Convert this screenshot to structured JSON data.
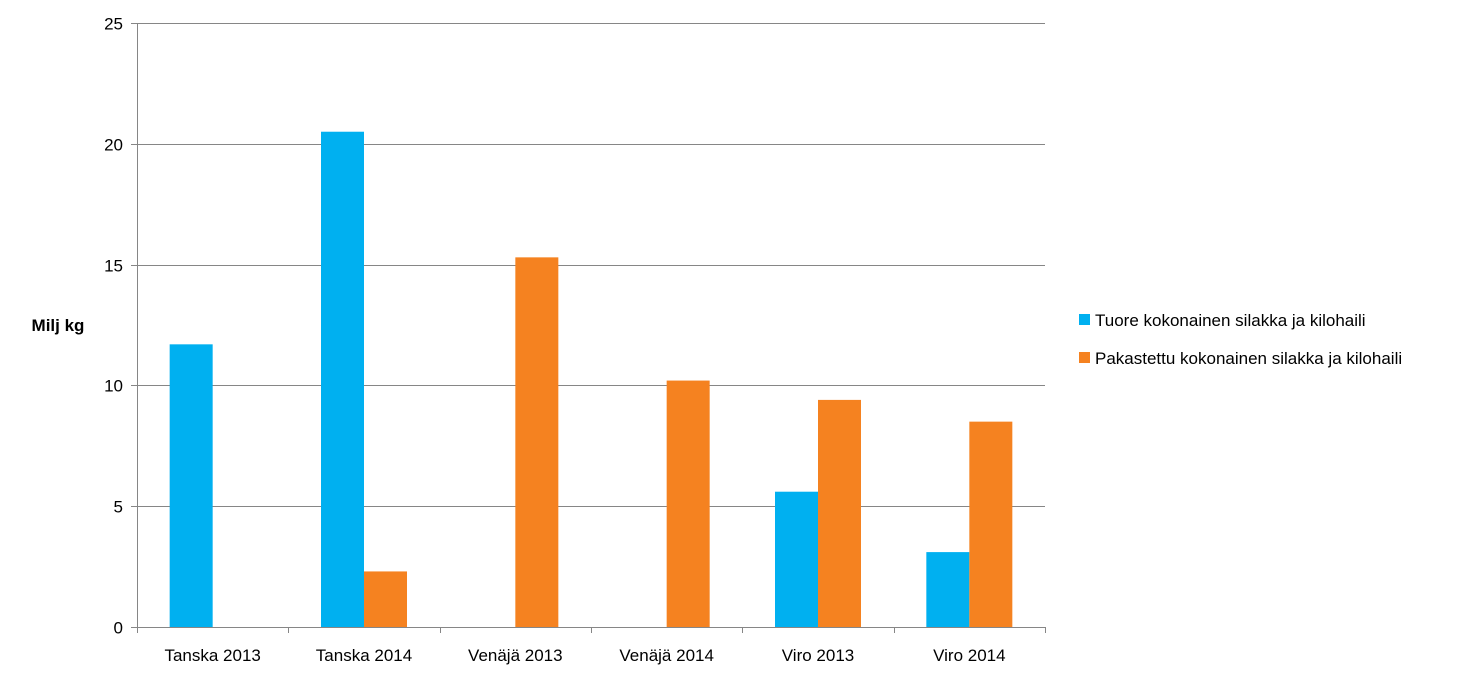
{
  "chart_data": {
    "type": "bar",
    "title": "",
    "xlabel": "",
    "ylabel": "Milj kg",
    "ylim": [
      0,
      25
    ],
    "yticks": [
      0,
      5,
      10,
      15,
      20,
      25
    ],
    "grid": true,
    "legend_position": "right",
    "categories": [
      "Tanska 2013",
      "Tanska 2014",
      "Venäjä 2013",
      "Venäjä 2014",
      "Viro 2013",
      "Viro 2014"
    ],
    "series": [
      {
        "name": "Tuore kokonainen silakka ja kilohaili",
        "color": "#00b0f0",
        "values": [
          11.7,
          20.5,
          0,
          0,
          5.6,
          3.1
        ]
      },
      {
        "name": "Pakastettu kokonainen silakka ja kilohaili",
        "color": "#f58220",
        "values": [
          0,
          2.3,
          15.3,
          10.2,
          9.4,
          8.5
        ]
      }
    ]
  }
}
